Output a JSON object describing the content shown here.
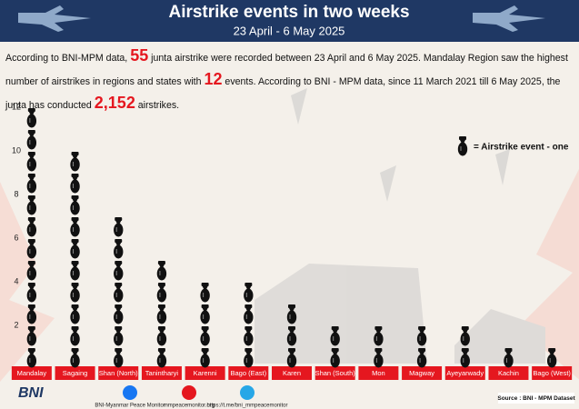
{
  "chart_data": {
    "type": "pictograph",
    "title": "Airstrike events in two weeks",
    "subtitle": "23 April - 6 May 2025",
    "intro": [
      "According to BNI-MPM data, ",
      "55",
      " junta airstrike were recorded between 23 April and 6 May 2025. Mandalay Region saw the highest number of airstrikes in regions and states with ",
      "12",
      " events. According to BNI - MPM data, since 11 March 2021 till 6 May 2025, the junta has conducted ",
      "2,152",
      " airstrikes."
    ],
    "categories": [
      "Mandalay",
      "Sagaing",
      "Shan (North)",
      "Tanintharyi",
      "Karenni",
      "Bago (East)",
      "Karen",
      "Shan (South)",
      "Mon",
      "Magway",
      "Ayeyarwady",
      "Kachin",
      "Bago (West)"
    ],
    "values": [
      12,
      10,
      7,
      5,
      4,
      4,
      3,
      2,
      2,
      2,
      2,
      1,
      1
    ],
    "color": "#111111",
    "label_color": "#e5171f",
    "ylim": [
      0,
      12
    ],
    "yticks": [
      2,
      4,
      6,
      8,
      10,
      12
    ],
    "legend": "= Airstrike event - one",
    "footer": {
      "org": "BNI",
      "facebook": "BNI-Myanmar Peace Monitor",
      "web": "mmpeacemonitor.org",
      "telegram": "https://t.me/bni_mmpeacemonitor",
      "source": "Source : BNI - MPM Dataset"
    }
  }
}
